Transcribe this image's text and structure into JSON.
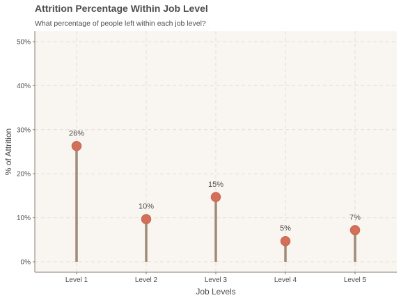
{
  "chart_data": {
    "type": "lollipop",
    "title": "Attrition Percentage Within Job Level",
    "subtitle": "What percentage of people left within each job level?",
    "xlabel": "Job Levels",
    "ylabel": "% of Attrition",
    "categories": [
      "Level 1",
      "Level 2",
      "Level 3",
      "Level 4",
      "Level 5"
    ],
    "values": [
      26.3,
      9.7,
      14.7,
      4.7,
      7.2
    ],
    "data_labels": [
      "26%",
      "10%",
      "15%",
      "5%",
      "7%"
    ],
    "ylim": [
      0,
      50
    ],
    "yticks": [
      0,
      10,
      20,
      30,
      40,
      50
    ],
    "ytick_labels": [
      "0%",
      "10%",
      "20%",
      "30%",
      "40%",
      "50%"
    ],
    "grid": true,
    "colors": {
      "panel_background": "#f9f6f1",
      "grid": "#e4ddd4",
      "stem": "#a08b78",
      "point_fill": "#d4705a",
      "point_stroke": "#c86a53",
      "axis_line": "#8a7a6c",
      "text": "#4d4d4d"
    }
  }
}
